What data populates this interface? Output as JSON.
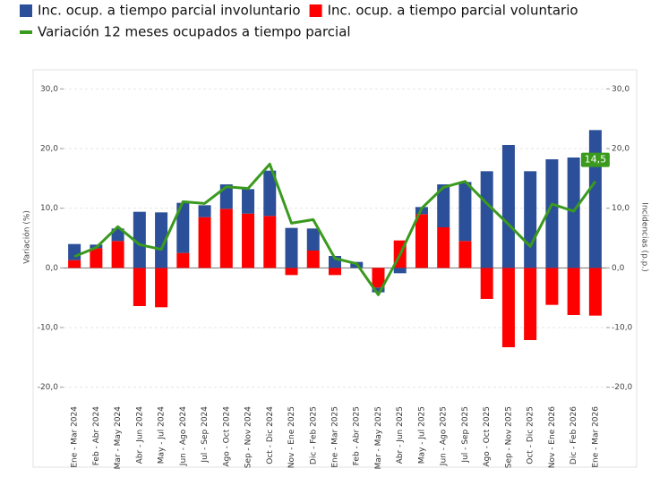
{
  "chart_data": {
    "type": "bar-line",
    "y_label": "Variación (%)",
    "y2_label": "Incidencias (p.p.)",
    "categories": [
      "Ene - Mar 2024",
      "Feb - Abr 2024",
      "Mar - May 2024",
      "Abr - Jun 2024",
      "May - Jul 2024",
      "Jun - Ago 2024",
      "Jul - Sep 2024",
      "Ago - Oct 2024",
      "Sep - Nov 2024",
      "Oct - Dic 2024",
      "Nov - Ene 2025",
      "Dic - Feb 2025",
      "Ene - Mar 2025",
      "Feb - Abr 2025",
      "Mar - May 2025",
      "Abr - Jun 2025",
      "May - Jul 2025",
      "Jun - Ago 2025",
      "Jul - Sep 2025",
      "Ago - Oct 2025",
      "Sep - Nov 2025",
      "Oct - Dic 2025",
      "Nov - Ene 2026",
      "Dic - Feb 2026",
      "Ene - Mar 2026"
    ],
    "series": [
      {
        "name": "Inc. ocup. a tiempo parcial involuntario",
        "type": "bar",
        "axis": "y2",
        "color": "#2b4f98",
        "values": [
          2.7,
          0.6,
          2.1,
          9.4,
          9.3,
          8.4,
          2.0,
          4.1,
          4.1,
          7.6,
          6.7,
          3.7,
          2.0,
          1.0,
          -0.8,
          -0.9,
          1.2,
          7.2,
          9.9,
          16.2,
          20.6,
          16.2,
          18.2,
          18.5,
          23.1
        ]
      },
      {
        "name": "Inc. ocup. a tiempo parcial voluntario",
        "type": "bar",
        "axis": "y2",
        "color": "#ff0000",
        "values": [
          1.3,
          3.3,
          4.5,
          -6.4,
          -6.6,
          2.5,
          8.5,
          9.9,
          9.1,
          8.7,
          -1.2,
          2.9,
          -1.2,
          0,
          -3.3,
          4.6,
          9.0,
          6.8,
          4.5,
          -5.2,
          -13.3,
          -12.1,
          -6.2,
          -7.9,
          -8.0
        ]
      },
      {
        "name": "Variación 12 meses ocupados a tiempo parcial",
        "type": "line",
        "color": "#3a9a1e",
        "values": [
          1.9,
          3.4,
          6.9,
          3.9,
          3.1,
          11.1,
          10.8,
          13.6,
          13.3,
          17.4,
          7.5,
          8.1,
          1.6,
          0.7,
          -4.5,
          2.2,
          10.0,
          13.5,
          14.5,
          10.8,
          7.3,
          3.6,
          10.7,
          9.5,
          14.5
        ],
        "value_labels": [
          null,
          null,
          null,
          null,
          null,
          null,
          null,
          null,
          null,
          null,
          null,
          null,
          null,
          null,
          null,
          null,
          null,
          null,
          null,
          null,
          null,
          null,
          null,
          null,
          "14,5"
        ]
      }
    ],
    "ylim": [
      -22,
      32
    ],
    "yticks": [
      {
        "value": -20,
        "label": "-20,0"
      },
      {
        "value": -10,
        "label": "-10,0"
      },
      {
        "value": 0,
        "label": "0,0"
      },
      {
        "value": 10,
        "label": "10,0"
      },
      {
        "value": 20,
        "label": "20,0"
      },
      {
        "value": 30,
        "label": "30,0"
      }
    ],
    "y2lim": [
      -22,
      32
    ],
    "y2ticks": [
      {
        "value": -20,
        "label": "-20,0"
      },
      {
        "value": -10,
        "label": "-10,0"
      },
      {
        "value": 0,
        "label": "0,0"
      },
      {
        "value": 10,
        "label": "10,0"
      },
      {
        "value": 20,
        "label": "20,0"
      },
      {
        "value": 30,
        "label": "30,0"
      }
    ],
    "grid": true,
    "legend": "top-left"
  }
}
